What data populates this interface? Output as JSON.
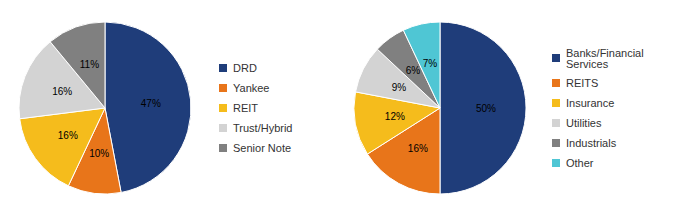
{
  "chart_data": [
    {
      "type": "pie",
      "categories": [
        "DRD",
        "Yankee",
        "REIT",
        "Trust/Hybrid",
        "Senior Note"
      ],
      "values": [
        47,
        10,
        16,
        16,
        11
      ],
      "value_labels": [
        "47%",
        "10%",
        "16%",
        "16%",
        "11%"
      ],
      "colors": [
        "#1F3D7A",
        "#E8751A",
        "#F5BC1C",
        "#D3D3D3",
        "#808080"
      ],
      "data_labels": true,
      "legend": "right"
    },
    {
      "type": "pie",
      "categories": [
        "Banks/Financial\nServices",
        "REITS",
        "Insurance",
        "Utilities",
        "Industrials",
        "Other"
      ],
      "values": [
        50,
        16,
        12,
        9,
        6,
        7
      ],
      "value_labels": [
        "50%",
        "16%",
        "12%",
        "9%",
        "6%",
        "7%"
      ],
      "colors": [
        "#1F3D7A",
        "#E8751A",
        "#F5BC1C",
        "#D3D3D3",
        "#808080",
        "#4FC6D4"
      ],
      "data_labels": true,
      "legend": "right"
    }
  ]
}
